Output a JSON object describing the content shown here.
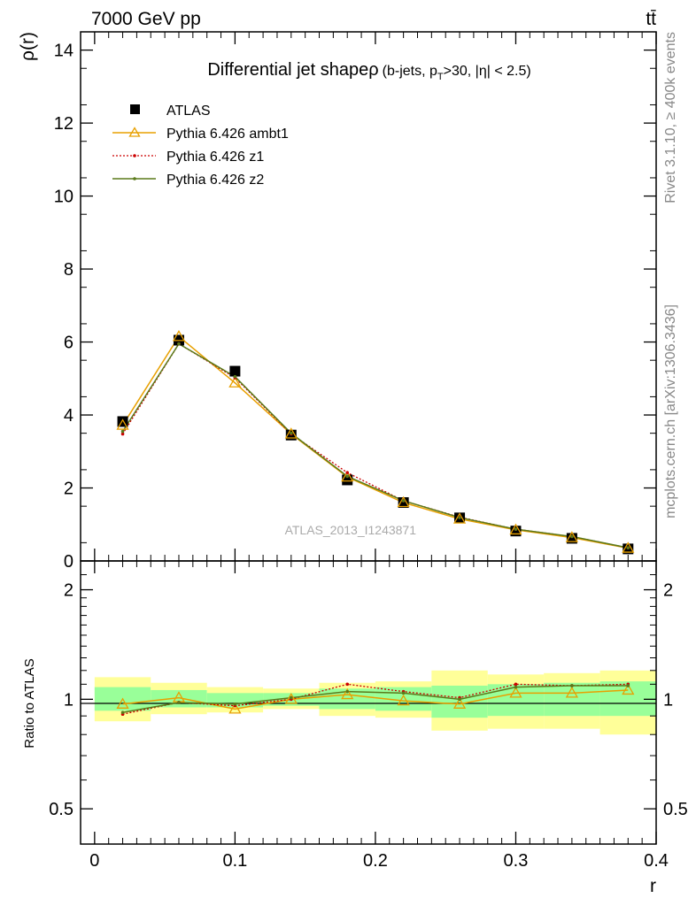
{
  "header": {
    "energy_label": "7000 GeV pp",
    "process_label": "tt̄"
  },
  "side_labels": {
    "rivet": "Rivet 3.1.10, ≥ 400k events",
    "mcplots": "mcplots.cern.ch [arXiv:1306.3436]"
  },
  "chart_data": {
    "type": "line",
    "title": {
      "main": "Differential jet shapeρ",
      "detail_pre": "(b-jets, p",
      "detail_sub": "T",
      "detail_post": ">30, |η| < 2.5)"
    },
    "analysis_id": "ATLAS_2013_I1243871",
    "xlabel": "r",
    "xlim": [
      -0.01,
      0.4
    ],
    "x_ticks": [
      0,
      0.1,
      0.2,
      0.3,
      0.4
    ],
    "x_tick_labels": [
      "0",
      "0.1",
      "0.2",
      "0.3",
      "0.4"
    ],
    "bins": [
      [
        0.0,
        0.04
      ],
      [
        0.04,
        0.08
      ],
      [
        0.08,
        0.12
      ],
      [
        0.12,
        0.16
      ],
      [
        0.16,
        0.2
      ],
      [
        0.2,
        0.24
      ],
      [
        0.24,
        0.28
      ],
      [
        0.28,
        0.32
      ],
      [
        0.32,
        0.36
      ],
      [
        0.36,
        0.4
      ]
    ],
    "x": [
      0.02,
      0.06,
      0.1,
      0.14,
      0.18,
      0.22,
      0.26,
      0.3,
      0.34,
      0.38
    ],
    "main_panel": {
      "ylabel": "ρ(r)",
      "ylim": [
        0,
        14.5
      ],
      "y_ticks": [
        0,
        2,
        4,
        6,
        8,
        10,
        12,
        14
      ],
      "y_tick_labels": [
        "0",
        "2",
        "4",
        "6",
        "8",
        "10",
        "12",
        "14"
      ],
      "series": [
        {
          "name": "ATLAS",
          "marker": "square",
          "color": "#000000",
          "values": [
            3.82,
            6.05,
            5.2,
            3.45,
            2.22,
            1.6,
            1.18,
            0.82,
            0.62,
            0.33
          ]
        },
        {
          "name": "Pythia 6.426 ambt1",
          "marker": "triangle",
          "color": "#e8a000",
          "values": [
            3.72,
            6.15,
            4.88,
            3.48,
            2.3,
            1.6,
            1.15,
            0.85,
            0.64,
            0.35
          ]
        },
        {
          "name": "Pythia 6.426 z1",
          "marker": "dot",
          "dash": "dotted",
          "color": "#cc0000",
          "values": [
            3.48,
            5.95,
            5.02,
            3.48,
            2.42,
            1.65,
            1.2,
            0.87,
            0.67,
            0.36
          ]
        },
        {
          "name": "Pythia 6.426 z2",
          "marker": "dot",
          "color": "#5a7a1a",
          "values": [
            3.55,
            5.95,
            5.05,
            3.5,
            2.32,
            1.65,
            1.19,
            0.87,
            0.67,
            0.36
          ]
        }
      ]
    },
    "ratio_panel": {
      "ylabel": "Ratio to ATLAS",
      "yscale": "log",
      "ylim": [
        0.4,
        2.4
      ],
      "y_ticks": [
        0.5,
        1,
        2
      ],
      "y_tick_labels": [
        "0.5",
        "1",
        "2"
      ],
      "inner_band": {
        "low": [
          0.93,
          0.95,
          0.95,
          0.96,
          0.94,
          0.93,
          0.89,
          0.9,
          0.9,
          0.9
        ],
        "high": [
          1.08,
          1.06,
          1.04,
          1.04,
          1.07,
          1.08,
          1.09,
          1.1,
          1.11,
          1.12
        ]
      },
      "outer_band": {
        "low": [
          0.87,
          0.91,
          0.92,
          0.94,
          0.9,
          0.89,
          0.82,
          0.83,
          0.83,
          0.8
        ],
        "high": [
          1.15,
          1.11,
          1.08,
          1.07,
          1.11,
          1.12,
          1.2,
          1.17,
          1.18,
          1.2
        ]
      },
      "series": [
        {
          "name": "Pythia 6.426 ambt1",
          "values": [
            0.97,
            1.01,
            0.94,
            1.0,
            1.03,
            0.99,
            0.97,
            1.04,
            1.04,
            1.06
          ]
        },
        {
          "name": "Pythia 6.426 z1",
          "values": [
            0.91,
            0.98,
            0.96,
            1.0,
            1.1,
            1.05,
            1.01,
            1.1,
            1.09,
            1.1
          ]
        },
        {
          "name": "Pythia 6.426 z2",
          "values": [
            0.92,
            0.98,
            0.97,
            1.01,
            1.05,
            1.04,
            1.0,
            1.08,
            1.09,
            1.09
          ]
        }
      ]
    },
    "colors": {
      "inner_band": "#99ff99",
      "outer_band": "#ffff99",
      "reference_line": "#000000"
    }
  }
}
